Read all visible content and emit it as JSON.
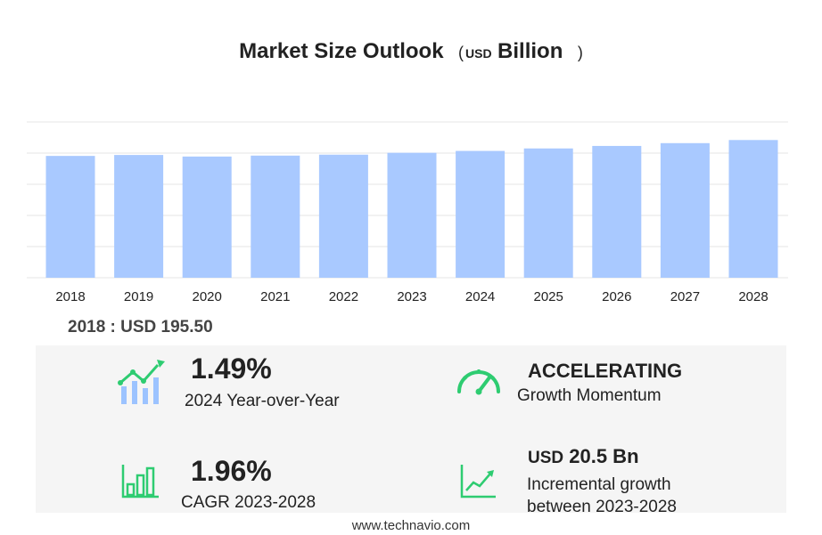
{
  "title": {
    "main": "Market Size Outlook",
    "open_paren": "(",
    "usd": "USD",
    "unit": "Billion",
    "close_paren": ")"
  },
  "colors": {
    "bar": "#a9c9ff",
    "grid": "#e4e4e4",
    "icon_green": "#2ecc71",
    "icon_blue": "#9cc3ff"
  },
  "chart_data": {
    "type": "bar",
    "categories": [
      "2018",
      "2019",
      "2020",
      "2021",
      "2022",
      "2023",
      "2024",
      "2025",
      "2026",
      "2027",
      "2028"
    ],
    "values": [
      195.5,
      197.0,
      194.5,
      196.0,
      197.5,
      200.5,
      203.5,
      207.5,
      211.5,
      216.0,
      221.0
    ],
    "ylim": [
      0,
      250
    ],
    "grid": true,
    "legend": "none"
  },
  "base": "2018 : USD  195.50",
  "stats": {
    "yoy": {
      "value": "1.49%",
      "label": "2024 Year-over-Year",
      "icon": "growth-bars-icon"
    },
    "momentum": {
      "value": "ACCELERATING",
      "label": "Growth Momentum",
      "icon": "speedometer-icon"
    },
    "cagr": {
      "value": "1.96%",
      "label": "CAGR 2023-2028",
      "icon": "bar-chart-icon"
    },
    "incremental": {
      "usd": "USD",
      "value": "20.5 Bn",
      "label1": "Incremental growth",
      "label2": "between 2023-2028",
      "icon": "trend-line-icon"
    }
  },
  "footer": "www.technavio.com"
}
